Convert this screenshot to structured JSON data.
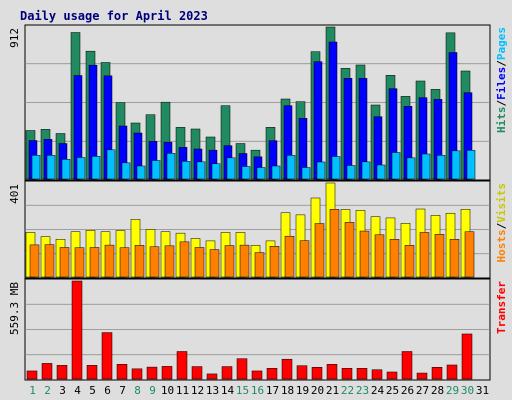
{
  "title": "Daily usage for April 2023",
  "colors": {
    "background": "#dedede",
    "hits": "#218a61",
    "files": "#0000ff",
    "pages": "#00c0ff",
    "visits": "#ffff00",
    "hosts": "#ff8000",
    "transfer": "#ff0000",
    "weekend_label": "#218a61",
    "title": "#00007b"
  },
  "chart_data": [
    {
      "type": "bar",
      "panel": "hits-files-pages",
      "categories": [
        "1",
        "2",
        "3",
        "4",
        "5",
        "6",
        "7",
        "8",
        "9",
        "10",
        "11",
        "12",
        "13",
        "14",
        "15",
        "16",
        "17",
        "18",
        "19",
        "20",
        "21",
        "22",
        "23",
        "24",
        "25",
        "26",
        "27",
        "28",
        "29",
        "30",
        "31"
      ],
      "weekend_days": [
        "1",
        "2",
        "8",
        "9",
        "15",
        "16",
        "22",
        "23",
        "29",
        "30"
      ],
      "ymax_label": "912",
      "ylim": [
        0,
        912
      ],
      "right_label": [
        "Hits",
        "/",
        "Files",
        "/",
        "Pages"
      ],
      "series": [
        {
          "name": "Hits",
          "values": [
            291,
            298,
            273,
            879,
            767,
            699,
            458,
            336,
            386,
            461,
            310,
            300,
            252,
            440,
            213,
            173,
            310,
            480,
            464,
            764,
            912,
            664,
            684,
            444,
            622,
            496,
            588,
            538,
            877,
            648,
            0
          ]
        },
        {
          "name": "Files",
          "values": [
            231,
            238,
            213,
            621,
            683,
            619,
            318,
            276,
            226,
            221,
            190,
            180,
            173,
            200,
            153,
            133,
            230,
            440,
            364,
            704,
            822,
            604,
            604,
            374,
            542,
            436,
            488,
            478,
            759,
            518,
            0
          ]
        },
        {
          "name": "Pages",
          "values": [
            142,
            142,
            118,
            129,
            136,
            175,
            97,
            78,
            111,
            154,
            106,
            103,
            92,
            127,
            75,
            69,
            78,
            142,
            69,
            102,
            135,
            81,
            103,
            84,
            159,
            127,
            150,
            142,
            169,
            172,
            0
          ]
        }
      ]
    },
    {
      "type": "bar",
      "panel": "visits-hosts",
      "categories": [
        "1",
        "2",
        "3",
        "4",
        "5",
        "6",
        "7",
        "8",
        "9",
        "10",
        "11",
        "12",
        "13",
        "14",
        "15",
        "16",
        "17",
        "18",
        "19",
        "20",
        "21",
        "22",
        "23",
        "24",
        "25",
        "26",
        "27",
        "28",
        "29",
        "30",
        "31"
      ],
      "ymax_label": "401",
      "ylim": [
        0,
        401
      ],
      "right_label": [
        "Hosts",
        "/",
        "Visits"
      ],
      "series": [
        {
          "name": "Visits",
          "values": [
            190,
            172,
            161,
            193,
            199,
            193,
            198,
            246,
            203,
            193,
            187,
            164,
            154,
            190,
            190,
            135,
            154,
            274,
            265,
            337,
            401,
            288,
            284,
            257,
            252,
            229,
            290,
            263,
            272,
            289,
            0
          ]
        },
        {
          "name": "Hosts",
          "values": [
            137,
            138,
            126,
            125,
            126,
            136,
            125,
            135,
            129,
            133,
            150,
            126,
            117,
            134,
            136,
            104,
            131,
            174,
            155,
            228,
            289,
            233,
            196,
            180,
            161,
            135,
            190,
            182,
            161,
            193,
            0
          ]
        }
      ]
    },
    {
      "type": "bar",
      "panel": "transfer",
      "categories": [
        "1",
        "2",
        "3",
        "4",
        "5",
        "6",
        "7",
        "8",
        "9",
        "10",
        "11",
        "12",
        "13",
        "14",
        "15",
        "16",
        "17",
        "18",
        "19",
        "20",
        "21",
        "22",
        "23",
        "24",
        "25",
        "26",
        "27",
        "28",
        "29",
        "30",
        "31"
      ],
      "ymax_label": "559.3 MB",
      "ylim": [
        0,
        559.3
      ],
      "right_label": [
        "Transfer"
      ],
      "series": [
        {
          "name": "Transfer",
          "values": [
            46,
            89,
            78,
            559.3,
            78,
            265,
            84,
            58,
            68,
            72,
            157,
            71,
            29,
            71,
            116,
            46,
            61,
            113,
            76,
            67,
            84,
            61,
            61,
            53,
            40,
            157,
            34,
            67,
            80,
            257,
            0
          ]
        }
      ]
    }
  ]
}
